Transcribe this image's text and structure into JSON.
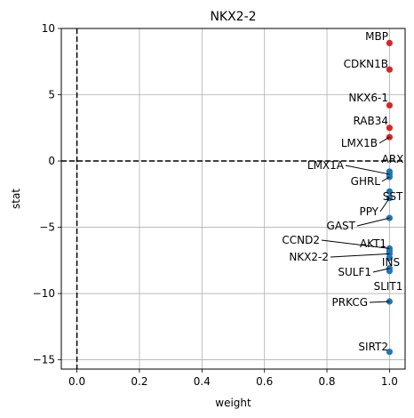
{
  "chart_data": {
    "type": "scatter",
    "title": "NKX2-2",
    "xlabel": "weight",
    "ylabel": "stat",
    "xlim": [
      -0.05,
      1.05
    ],
    "ylim": [
      -15.7,
      10
    ],
    "xticks": [
      0.0,
      0.2,
      0.4,
      0.6,
      0.8,
      1.0
    ],
    "xtick_labels": [
      "0.0",
      "0.2",
      "0.4",
      "0.6",
      "0.8",
      "1.0"
    ],
    "yticks": [
      -15,
      -10,
      -5,
      0,
      5,
      10
    ],
    "ytick_labels": [
      "−15",
      "−10",
      "−5",
      "0",
      "5",
      "10"
    ],
    "grid": true,
    "reference_lines": {
      "x": 0,
      "y": 0
    },
    "colors": {
      "positive": "#d62728",
      "negative": "#1f77b4"
    },
    "points": [
      {
        "name": "MBP",
        "x": 1.0,
        "y": 8.9
      },
      {
        "name": "CDKN1B",
        "x": 1.0,
        "y": 6.9
      },
      {
        "name": "NKX6-1",
        "x": 1.0,
        "y": 4.2
      },
      {
        "name": "RAB34",
        "x": 1.0,
        "y": 2.5
      },
      {
        "name": "LMX1B",
        "x": 1.0,
        "y": 1.8
      },
      {
        "name": "ARX",
        "x": 1.0,
        "y": -0.8
      },
      {
        "name": "LMX1A",
        "x": 1.0,
        "y": -1.0
      },
      {
        "name": "GHRL",
        "x": 1.0,
        "y": -1.2
      },
      {
        "name": "SST",
        "x": 1.0,
        "y": -2.3
      },
      {
        "name": "PPY",
        "x": 1.0,
        "y": -2.8
      },
      {
        "name": "GAST",
        "x": 1.0,
        "y": -4.3
      },
      {
        "name": "CCND2",
        "x": 1.0,
        "y": -6.6
      },
      {
        "name": "AKT1",
        "x": 1.0,
        "y": -6.8
      },
      {
        "name": "NKX2-2",
        "x": 1.0,
        "y": -7.0
      },
      {
        "name": "INS",
        "x": 1.0,
        "y": -7.3
      },
      {
        "name": "SULF1",
        "x": 1.0,
        "y": -8.1
      },
      {
        "name": "SLIT1",
        "x": 1.0,
        "y": -8.3
      },
      {
        "name": "PRKCG",
        "x": 1.0,
        "y": -10.6
      },
      {
        "name": "SIRT2",
        "x": 1.0,
        "y": -14.4
      }
    ]
  }
}
